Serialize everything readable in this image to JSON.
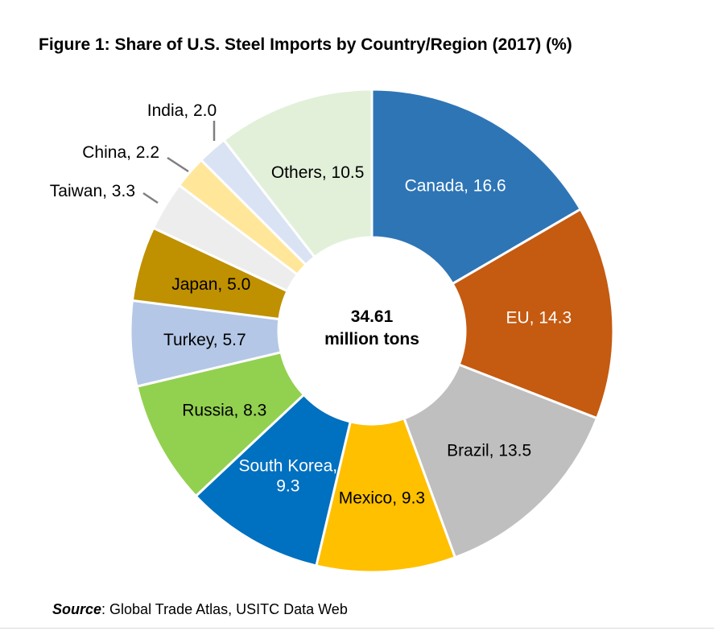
{
  "header": {
    "title": "Figure 1: Share of U.S. Steel Imports by Country/Region (2017) (%)"
  },
  "chart_data": {
    "type": "pie",
    "variant": "donut",
    "title": "Figure 1: Share of U.S. Steel Imports by Country/Region (2017) (%)",
    "center_label": [
      "34.61",
      "million tons"
    ],
    "slices": [
      {
        "label": "Canada",
        "value": 16.6,
        "color": "#2e75b6",
        "label_color": "#ffffff",
        "label_lines": [
          "Canada, 16.6"
        ]
      },
      {
        "label": "EU",
        "value": 14.3,
        "color": "#c55a11",
        "label_color": "#ffffff",
        "label_lines": [
          "EU, 14.3"
        ]
      },
      {
        "label": "Brazil",
        "value": 13.5,
        "color": "#bfbfbf",
        "label_color": "#000000",
        "label_lines": [
          "Brazil, 13.5"
        ]
      },
      {
        "label": "Mexico",
        "value": 9.3,
        "color": "#ffc000",
        "label_color": "#000000",
        "label_lines": [
          "Mexico, 9.3"
        ]
      },
      {
        "label": "South Korea",
        "value": 9.3,
        "color": "#0070c0",
        "label_color": "#ffffff",
        "label_lines": [
          "South Korea,",
          "9.3"
        ]
      },
      {
        "label": "Russia",
        "value": 8.3,
        "color": "#92d050",
        "label_color": "#000000",
        "label_lines": [
          "Russia, 8.3"
        ]
      },
      {
        "label": "Turkey",
        "value": 5.7,
        "color": "#b4c7e7",
        "label_color": "#000000",
        "label_lines": [
          "Turkey, 5.7"
        ]
      },
      {
        "label": "Japan",
        "value": 5.0,
        "color": "#bf9000",
        "label_color": "#000000",
        "label_lines": [
          "Japan, 5.0"
        ]
      },
      {
        "label": "Taiwan",
        "value": 3.3,
        "color": "#ededed",
        "label_color": "#000000",
        "label_lines": [
          "Taiwan, 3.3"
        ],
        "outside": true
      },
      {
        "label": "China",
        "value": 2.2,
        "color": "#ffe699",
        "label_color": "#000000",
        "label_lines": [
          "China, 2.2"
        ],
        "outside": true
      },
      {
        "label": "India",
        "value": 2.0,
        "color": "#dae3f3",
        "label_color": "#000000",
        "label_lines": [
          "India, 2.0"
        ],
        "outside": true
      },
      {
        "label": "Others",
        "value": 10.5,
        "color": "#e2f0d9",
        "label_color": "#000000",
        "label_lines": [
          "Others, 10.5"
        ]
      }
    ]
  },
  "footer": {
    "source_label": "Source",
    "source_text": ": Global Trade Atlas, USITC Data Web"
  }
}
